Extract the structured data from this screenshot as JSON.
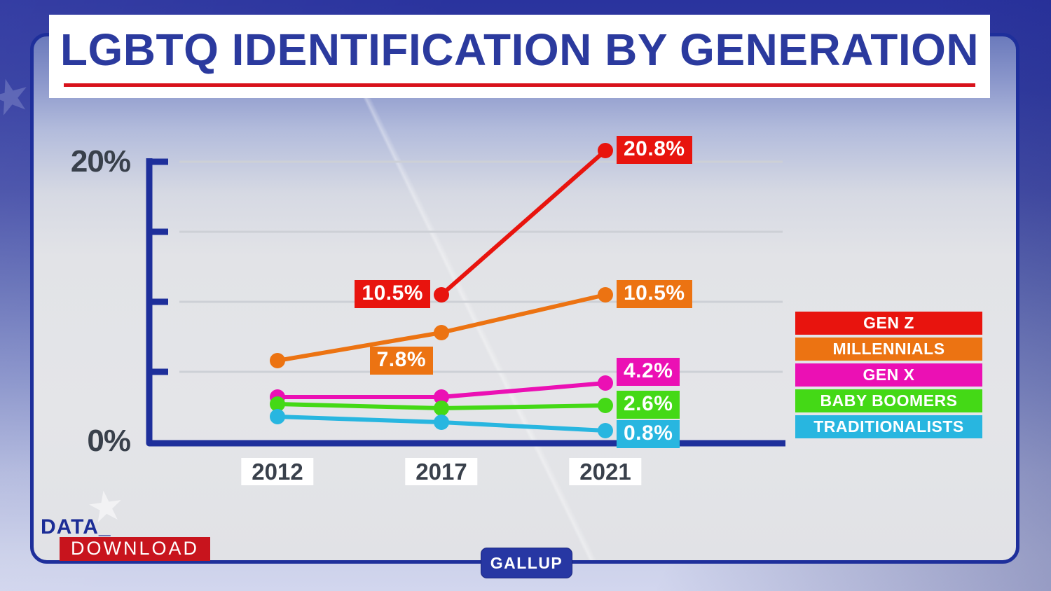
{
  "header": {
    "title": "LGBTQ IDENTIFICATION BY GENERATION",
    "title_color": "#2b3a9e",
    "underline_color": "#d8121b"
  },
  "chart_data": {
    "type": "line",
    "title": "LGBTQ identification by generation",
    "categories": [
      "2012",
      "2017",
      "2021"
    ],
    "series": [
      {
        "name": "GEN Z",
        "color": "#e8140e",
        "values": [
          null,
          10.5,
          20.8
        ]
      },
      {
        "name": "MILLENNIALS",
        "color": "#ec7312",
        "values": [
          5.8,
          7.8,
          10.5
        ]
      },
      {
        "name": "GEN X",
        "color": "#eb10b4",
        "values": [
          3.2,
          3.2,
          4.2
        ]
      },
      {
        "name": "BABY BOOMERS",
        "color": "#44d916",
        "values": [
          2.7,
          2.4,
          2.6
        ]
      },
      {
        "name": "TRADITIONALISTS",
        "color": "#28b6e0",
        "values": [
          1.8,
          1.4,
          0.8
        ]
      }
    ],
    "point_labels": [
      {
        "text": "10.5%",
        "series": 0,
        "point": 1,
        "placement": "left",
        "dy": 0
      },
      {
        "text": "20.8%",
        "series": 0,
        "point": 2,
        "placement": "right",
        "dy": 0
      },
      {
        "text": "7.8%",
        "series": 1,
        "point": 1,
        "placement": "below-left",
        "dy": 0
      },
      {
        "text": "10.5%",
        "series": 1,
        "point": 2,
        "placement": "right",
        "dy": 0
      },
      {
        "text": "4.2%",
        "series": 2,
        "point": 2,
        "placement": "right",
        "dy": -15
      },
      {
        "text": "2.6%",
        "series": 3,
        "point": 2,
        "placement": "right",
        "dy": 0
      },
      {
        "text": "0.8%",
        "series": 4,
        "point": 2,
        "placement": "right",
        "dy": 6
      }
    ],
    "y_axis": {
      "top_label": "20%",
      "bottom_label": "0%",
      "ylim": [
        0,
        20
      ],
      "gridlines_pct": [
        5,
        10,
        15,
        20
      ]
    },
    "xlabel": "",
    "ylabel": "",
    "grid": true,
    "legend_position": "right"
  },
  "footer": {
    "logo_line1": "DATA_",
    "logo_line2": "DOWNLOAD",
    "source": "GALLUP"
  }
}
